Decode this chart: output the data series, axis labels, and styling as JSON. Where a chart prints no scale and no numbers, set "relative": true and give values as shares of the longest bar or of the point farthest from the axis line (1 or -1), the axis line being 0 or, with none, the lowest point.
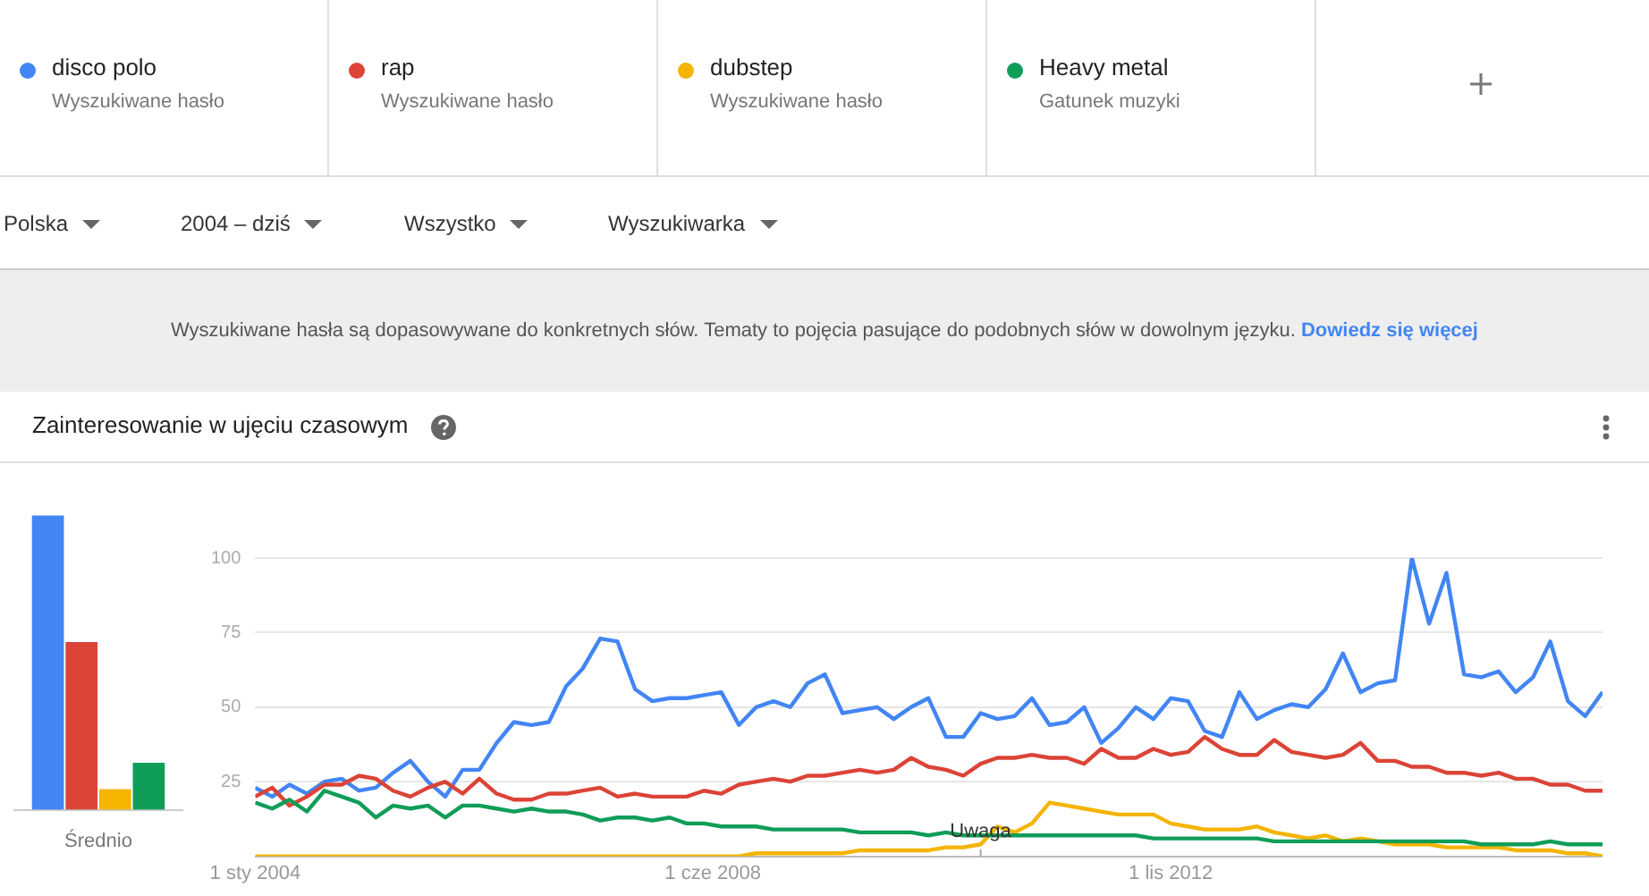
{
  "chart_data": [
    {
      "type": "other",
      "annotations": [
        "Wyszukiwane hasło",
        "Wyszukiwane hasło",
        "Wyszukiwane hasło",
        "Gatunek muzyki",
        "Polska",
        "2004 – dziś",
        "Wszystko",
        "Wyszukiwarka",
        "Wyszukiwane hasła są dopasowywane do konkretnych słów. Tematy to pojęcia pasujące do podobnych słów w dowolnym języku.",
        "Dowiedz się więcej"
      ]
    },
    {
      "type": "bar",
      "relative": true,
      "categories": [
        "Średnio"
      ],
      "legend": false,
      "series": [
        {
          "color": "#4285f4",
          "values": [
            1
          ]
        },
        {
          "color": "#db4437",
          "values": [
            0.57
          ]
        },
        {
          "color": "#f4b400",
          "values": [
            0.07
          ]
        },
        {
          "color": "#0f9d58",
          "values": [
            0.16
          ]
        }
      ]
    },
    {
      "type": "line",
      "title": "Zainteresowanie w ujęciu czasowym",
      "grid": "y",
      "marker": "none",
      "line_style": "solid",
      "x": [
        "2004-01",
        "2004-03",
        "2004-05",
        "2004-07",
        "2004-09",
        "2004-11",
        "2005-01",
        "2005-03",
        "2005-05",
        "2005-07",
        "2005-09",
        "2005-11",
        "2006-01",
        "2006-03",
        "2006-05",
        "2006-07",
        "2006-09",
        "2006-11",
        "2007-01",
        "2007-03",
        "2007-05",
        "2007-07",
        "2007-09",
        "2007-11",
        "2008-01",
        "2008-03",
        "2008-05",
        "2008-07",
        "2008-09",
        "2008-11",
        "2009-01",
        "2009-03",
        "2009-05",
        "2009-07",
        "2009-09",
        "2009-11",
        "2010-01",
        "2010-03",
        "2010-05",
        "2010-07",
        "2010-09",
        "2010-11",
        "2011-01",
        "2011-03",
        "2011-05",
        "2011-07",
        "2011-09",
        "2011-11",
        "2012-01",
        "2012-03",
        "2012-05",
        "2012-07",
        "2012-09",
        "2012-11",
        "2013-01",
        "2013-03",
        "2013-05",
        "2013-07",
        "2013-09",
        "2013-11",
        "2014-01",
        "2014-03",
        "2014-05",
        "2014-07",
        "2014-09",
        "2014-11",
        "2015-01",
        "2015-03",
        "2015-05",
        "2015-07",
        "2015-09",
        "2015-11",
        "2016-01",
        "2016-03",
        "2016-05",
        "2016-07",
        "2016-09",
        "2016-11",
        "2017-01"
      ],
      "xlim": [
        "2004-01",
        "2017-01"
      ],
      "xticks": [
        {
          "value": "2004-01-01",
          "label": "1 sty 2004"
        },
        {
          "value": "2008-06-01",
          "label": "1 cze 2008"
        },
        {
          "value": "2012-11-01",
          "label": "1 lis 2012"
        }
      ],
      "ylim": [
        0,
        100
      ],
      "yticks": [
        {
          "value": 0,
          "label": null
        },
        25,
        50,
        75,
        100
      ],
      "annotations": [
        {
          "text": "Uwaga",
          "x": "2011-01",
          "y": 5
        }
      ],
      "series": [
        {
          "name": "disco polo",
          "color": "#4285f4",
          "values": [
            23,
            20,
            24,
            21,
            25,
            26,
            22,
            23,
            28,
            32,
            25,
            20,
            29,
            29,
            38,
            45,
            44,
            45,
            57,
            63,
            73,
            72,
            56,
            52,
            53,
            53,
            54,
            55,
            44,
            50,
            52,
            50,
            58,
            61,
            48,
            49,
            50,
            46,
            50,
            53,
            40,
            40,
            48,
            46,
            47,
            53,
            44,
            45,
            50,
            38,
            43,
            50,
            46,
            53,
            52,
            42,
            40,
            55,
            46,
            49,
            51,
            50,
            56,
            68,
            55,
            58,
            59,
            100,
            78,
            95,
            61,
            60,
            62,
            55,
            60,
            72,
            52,
            47,
            55
          ]
        },
        {
          "name": "rap",
          "color": "#db4437",
          "values": [
            20,
            23,
            17,
            20,
            24,
            24,
            27,
            26,
            22,
            20,
            23,
            25,
            21,
            26,
            21,
            19,
            19,
            21,
            21,
            22,
            23,
            20,
            21,
            20,
            20,
            20,
            22,
            21,
            24,
            25,
            26,
            25,
            27,
            27,
            28,
            29,
            28,
            29,
            33,
            30,
            29,
            27,
            31,
            33,
            33,
            34,
            33,
            33,
            31,
            36,
            33,
            33,
            36,
            34,
            35,
            40,
            36,
            34,
            34,
            39,
            35,
            34,
            33,
            34,
            38,
            32,
            32,
            30,
            30,
            28,
            28,
            27,
            28,
            26,
            26,
            24,
            24,
            22,
            22
          ]
        },
        {
          "name": "dubstep",
          "color": "#f4b400",
          "values": [
            0,
            0,
            0,
            0,
            0,
            0,
            0,
            0,
            0,
            0,
            0,
            0,
            0,
            0,
            0,
            0,
            0,
            0,
            0,
            0,
            0,
            0,
            0,
            0,
            0,
            0,
            0,
            0,
            0,
            1,
            1,
            1,
            1,
            1,
            1,
            2,
            2,
            2,
            2,
            2,
            3,
            3,
            4,
            10,
            8,
            11,
            18,
            17,
            16,
            15,
            14,
            14,
            14,
            11,
            10,
            9,
            9,
            9,
            10,
            8,
            7,
            6,
            7,
            5,
            6,
            5,
            4,
            4,
            4,
            3,
            3,
            3,
            3,
            2,
            2,
            2,
            1,
            1,
            0
          ]
        },
        {
          "name": "Heavy metal",
          "color": "#0f9d58",
          "values": [
            18,
            16,
            19,
            15,
            22,
            20,
            18,
            13,
            17,
            16,
            17,
            13,
            17,
            17,
            16,
            15,
            16,
            15,
            15,
            14,
            12,
            13,
            13,
            12,
            13,
            11,
            11,
            10,
            10,
            10,
            9,
            9,
            9,
            9,
            9,
            8,
            8,
            8,
            8,
            7,
            8,
            7,
            7,
            7,
            7,
            7,
            7,
            7,
            7,
            7,
            7,
            7,
            6,
            6,
            6,
            6,
            6,
            6,
            6,
            5,
            5,
            5,
            5,
            5,
            5,
            5,
            5,
            5,
            5,
            5,
            5,
            4,
            4,
            4,
            4,
            5,
            4,
            4,
            4
          ]
        }
      ]
    }
  ]
}
